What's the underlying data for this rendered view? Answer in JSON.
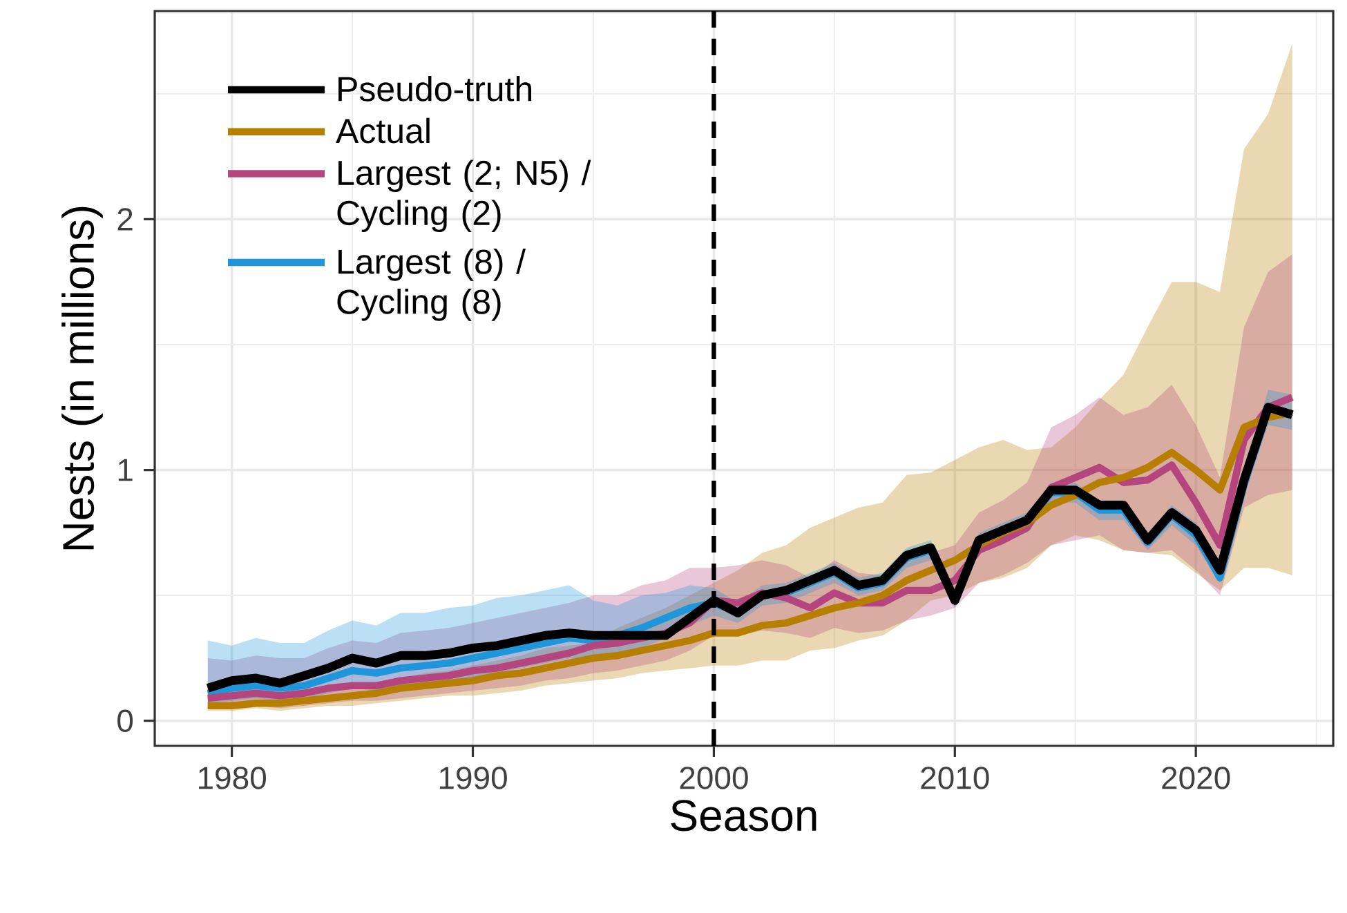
{
  "chart_data": {
    "type": "line",
    "xlabel": "Season",
    "ylabel": "Nests (in millions)",
    "x": [
      1979,
      1980,
      1981,
      1982,
      1983,
      1984,
      1985,
      1986,
      1987,
      1988,
      1989,
      1990,
      1991,
      1992,
      1993,
      1994,
      1995,
      1996,
      1997,
      1998,
      1999,
      2000,
      2001,
      2002,
      2003,
      2004,
      2005,
      2006,
      2007,
      2008,
      2009,
      2010,
      2011,
      2012,
      2013,
      2014,
      2015,
      2016,
      2017,
      2018,
      2019,
      2020,
      2021,
      2022,
      2023,
      2024
    ],
    "series": [
      {
        "name": "Pseudo-truth",
        "color": "#000000",
        "values": [
          0.13,
          0.16,
          0.17,
          0.15,
          0.18,
          0.21,
          0.25,
          0.23,
          0.26,
          0.26,
          0.27,
          0.29,
          0.3,
          0.32,
          0.34,
          0.35,
          0.34,
          0.34,
          0.34,
          0.34,
          0.41,
          0.48,
          0.43,
          0.5,
          0.52,
          0.56,
          0.6,
          0.54,
          0.56,
          0.66,
          0.69,
          0.48,
          0.72,
          0.76,
          0.8,
          0.92,
          0.92,
          0.86,
          0.86,
          0.72,
          0.83,
          0.76,
          0.6,
          0.96,
          1.25,
          1.22
        ]
      },
      {
        "name": "Actual",
        "color": "#b77f00",
        "values": [
          0.06,
          0.06,
          0.07,
          0.07,
          0.08,
          0.09,
          0.1,
          0.11,
          0.13,
          0.14,
          0.15,
          0.16,
          0.18,
          0.19,
          0.21,
          0.23,
          0.25,
          0.26,
          0.28,
          0.3,
          0.32,
          0.35,
          0.35,
          0.38,
          0.39,
          0.42,
          0.45,
          0.47,
          0.5,
          0.56,
          0.6,
          0.64,
          0.7,
          0.75,
          0.79,
          0.86,
          0.9,
          0.95,
          0.97,
          1.01,
          1.07,
          1.0,
          0.92,
          1.17,
          1.21,
          1.23
        ],
        "lower": [
          0.04,
          0.04,
          0.05,
          0.04,
          0.05,
          0.06,
          0.06,
          0.07,
          0.08,
          0.09,
          0.1,
          0.1,
          0.11,
          0.12,
          0.14,
          0.15,
          0.16,
          0.17,
          0.19,
          0.2,
          0.21,
          0.22,
          0.22,
          0.24,
          0.24,
          0.28,
          0.29,
          0.32,
          0.34,
          0.4,
          0.48,
          0.5,
          0.55,
          0.57,
          0.61,
          0.7,
          0.74,
          0.72,
          0.68,
          0.67,
          0.66,
          0.59,
          0.52,
          0.61,
          0.61,
          0.58
        ],
        "upper": [
          0.09,
          0.09,
          0.1,
          0.1,
          0.11,
          0.12,
          0.14,
          0.15,
          0.17,
          0.19,
          0.2,
          0.22,
          0.24,
          0.26,
          0.29,
          0.3,
          0.31,
          0.37,
          0.41,
          0.45,
          0.5,
          0.55,
          0.6,
          0.67,
          0.7,
          0.77,
          0.81,
          0.85,
          0.87,
          0.98,
          0.99,
          1.04,
          1.09,
          1.12,
          1.08,
          1.09,
          1.17,
          1.28,
          1.38,
          1.57,
          1.75,
          1.75,
          1.71,
          2.28,
          2.42,
          2.7
        ]
      },
      {
        "name": "Largest (2; N5) / Cycling (2)",
        "color": "#b5457e",
        "values": [
          0.09,
          0.1,
          0.11,
          0.1,
          0.11,
          0.13,
          0.14,
          0.14,
          0.16,
          0.17,
          0.18,
          0.2,
          0.21,
          0.23,
          0.25,
          0.27,
          0.3,
          0.31,
          0.33,
          0.35,
          0.39,
          0.48,
          0.47,
          0.51,
          0.49,
          0.45,
          0.51,
          0.47,
          0.47,
          0.52,
          0.52,
          0.56,
          0.68,
          0.72,
          0.77,
          0.93,
          0.97,
          1.01,
          0.95,
          0.96,
          1.02,
          0.87,
          0.7,
          1.12,
          1.25,
          1.29
        ],
        "lower": [
          0.05,
          0.05,
          0.06,
          0.05,
          0.06,
          0.07,
          0.08,
          0.08,
          0.09,
          0.1,
          0.11,
          0.12,
          0.13,
          0.14,
          0.16,
          0.17,
          0.19,
          0.2,
          0.22,
          0.24,
          0.28,
          0.34,
          0.34,
          0.36,
          0.35,
          0.33,
          0.37,
          0.35,
          0.36,
          0.4,
          0.42,
          0.45,
          0.55,
          0.58,
          0.63,
          0.7,
          0.72,
          0.74,
          0.68,
          0.67,
          0.68,
          0.6,
          0.5,
          0.85,
          0.9,
          0.92
        ],
        "upper": [
          0.25,
          0.24,
          0.26,
          0.25,
          0.25,
          0.29,
          0.32,
          0.31,
          0.35,
          0.36,
          0.37,
          0.39,
          0.41,
          0.43,
          0.45,
          0.47,
          0.5,
          0.5,
          0.54,
          0.56,
          0.61,
          0.61,
          0.62,
          0.64,
          0.62,
          0.57,
          0.64,
          0.59,
          0.58,
          0.66,
          0.67,
          0.7,
          0.83,
          0.88,
          0.95,
          1.17,
          1.22,
          1.29,
          1.22,
          1.25,
          1.34,
          1.18,
          0.97,
          1.57,
          1.79,
          1.86
        ]
      },
      {
        "name": "Largest (8) / Cycling (8)",
        "color": "#1f96d9",
        "values": [
          0.11,
          0.13,
          0.14,
          0.13,
          0.14,
          0.17,
          0.2,
          0.19,
          0.21,
          0.22,
          0.23,
          0.25,
          0.27,
          0.29,
          0.31,
          0.33,
          0.32,
          0.34,
          0.37,
          0.41,
          0.45,
          0.47,
          0.43,
          0.5,
          0.51,
          0.55,
          0.59,
          0.53,
          0.55,
          0.65,
          0.68,
          0.48,
          0.71,
          0.75,
          0.79,
          0.91,
          0.91,
          0.84,
          0.84,
          0.71,
          0.82,
          0.74,
          0.57,
          0.94,
          1.24,
          1.22
        ],
        "lower": [
          0.07,
          0.08,
          0.09,
          0.08,
          0.09,
          0.11,
          0.13,
          0.12,
          0.14,
          0.15,
          0.16,
          0.17,
          0.19,
          0.21,
          0.23,
          0.25,
          0.24,
          0.26,
          0.29,
          0.33,
          0.38,
          0.42,
          0.39,
          0.46,
          0.47,
          0.51,
          0.55,
          0.5,
          0.52,
          0.61,
          0.64,
          0.45,
          0.68,
          0.72,
          0.75,
          0.87,
          0.87,
          0.8,
          0.8,
          0.68,
          0.78,
          0.7,
          0.55,
          0.9,
          1.18,
          1.16
        ],
        "upper": [
          0.32,
          0.3,
          0.33,
          0.31,
          0.31,
          0.36,
          0.4,
          0.38,
          0.43,
          0.43,
          0.45,
          0.46,
          0.49,
          0.5,
          0.52,
          0.54,
          0.48,
          0.46,
          0.5,
          0.51,
          0.54,
          0.53,
          0.47,
          0.54,
          0.55,
          0.59,
          0.63,
          0.57,
          0.59,
          0.69,
          0.72,
          0.51,
          0.75,
          0.79,
          0.83,
          0.95,
          0.95,
          0.88,
          0.88,
          0.75,
          0.86,
          0.79,
          0.62,
          0.99,
          1.32,
          1.3
        ]
      }
    ],
    "xlim": [
      1976.8,
      2025.7
    ],
    "ylim": [
      -0.1,
      2.83
    ],
    "xticks": [
      1980,
      1990,
      2000,
      2010,
      2020
    ],
    "yticks": [
      0,
      1,
      2
    ],
    "ref_lines": [
      {
        "axis": "x",
        "value": 2000,
        "color": "#000000",
        "line_style": "dashed"
      }
    ],
    "grid": true,
    "legend": "top left",
    "marker": "none",
    "line_style": "solid"
  }
}
